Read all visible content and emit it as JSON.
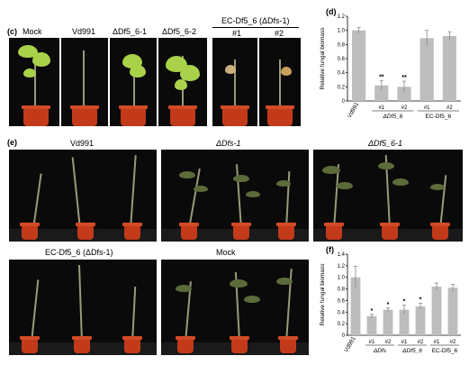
{
  "panel_c": {
    "letter": "(c)",
    "labels": [
      "Mock",
      "Vd991",
      "ΔDf5_6-1",
      "ΔDf5_6-2"
    ],
    "group_label": "EC-Df5_6 (ΔDfs-1)",
    "sub_labels": [
      "#1",
      "#2"
    ]
  },
  "panel_e": {
    "letter": "(e)",
    "labels": [
      "Vd991",
      "ΔDfs-1",
      "ΔDf5_6-1",
      "EC-Df5_6 (ΔDfs-1)",
      "Mock"
    ]
  },
  "chart_data": [
    {
      "panel": "(d)",
      "type": "bar",
      "ylabel": "Relative fungal biomass",
      "ylim": [
        0,
        1.2
      ],
      "yticks": [
        "0",
        "0.2",
        "0.4",
        "0.6",
        "0.8",
        "1.0",
        "1.2"
      ],
      "categories": [
        "Vd991",
        "#1",
        "#2",
        "#1",
        "#2"
      ],
      "group_labels": [
        "ΔDf5_6",
        "EC-Df5_6"
      ],
      "values": [
        1.0,
        0.22,
        0.2,
        0.89,
        0.92
      ],
      "errors": [
        0.04,
        0.07,
        0.08,
        0.11,
        0.06
      ],
      "significance": [
        "",
        "**",
        "**",
        "",
        ""
      ],
      "bar_color": "#bdbdbd"
    },
    {
      "panel": "(f)",
      "type": "bar",
      "ylabel": "Relative fungal biomass",
      "ylim": [
        0,
        1.4
      ],
      "yticks": [
        "0",
        "0.2",
        "0.4",
        "0.6",
        "0.8",
        "1.0",
        "1.2",
        "1.4"
      ],
      "categories": [
        "Vd991",
        "#1",
        "#2",
        "#1",
        "#2",
        "#1",
        "#2"
      ],
      "group_labels": [
        "ΔDfs",
        "ΔDf5_6",
        "EC-Df5_6"
      ],
      "values": [
        1.0,
        0.33,
        0.44,
        0.44,
        0.5,
        0.84,
        0.82
      ],
      "errors": [
        0.19,
        0.03,
        0.03,
        0.08,
        0.05,
        0.06,
        0.06
      ],
      "significance": [
        "",
        "*",
        "*",
        "*",
        "*",
        "",
        ""
      ],
      "bar_color": "#bdbdbd"
    }
  ]
}
